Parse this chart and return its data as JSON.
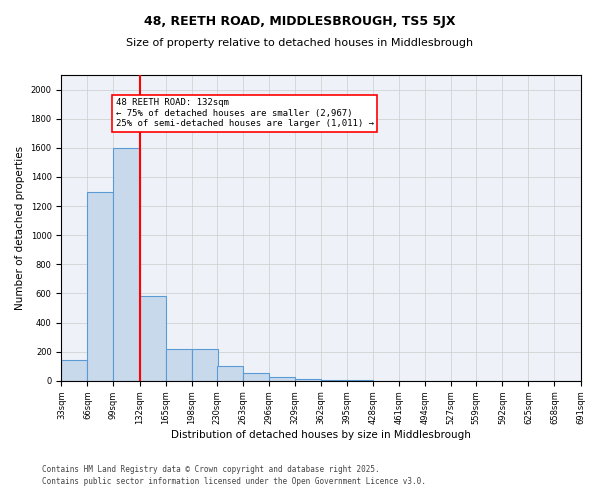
{
  "title": "48, REETH ROAD, MIDDLESBROUGH, TS5 5JX",
  "subtitle": "Size of property relative to detached houses in Middlesbrough",
  "xlabel": "Distribution of detached houses by size in Middlesbrough",
  "ylabel": "Number of detached properties",
  "bin_edges": [
    33,
    66,
    99,
    132,
    165,
    198,
    230,
    263,
    296,
    329,
    362,
    395,
    428,
    461,
    494,
    527,
    559,
    592,
    625,
    658,
    691
  ],
  "bar_heights": [
    140,
    1300,
    1600,
    580,
    220,
    220,
    100,
    55,
    25,
    10,
    5,
    3,
    2,
    1,
    1,
    0,
    0,
    0,
    0,
    0
  ],
  "bar_facecolor": "#c9d9ec",
  "bar_edgecolor": "#5b9bd5",
  "property_size": 132,
  "vline_color": "red",
  "annotation_text": "48 REETH ROAD: 132sqm\n← 75% of detached houses are smaller (2,967)\n25% of semi-detached houses are larger (1,011) →",
  "annotation_boxcolor": "white",
  "annotation_edgecolor": "red",
  "ylim": [
    0,
    2100
  ],
  "yticks": [
    0,
    200,
    400,
    600,
    800,
    1000,
    1200,
    1400,
    1600,
    1800,
    2000
  ],
  "grid_color": "#cccccc",
  "background_color": "#eef2f8",
  "footer_line1": "Contains HM Land Registry data © Crown copyright and database right 2025.",
  "footer_line2": "Contains public sector information licensed under the Open Government Licence v3.0.",
  "title_fontsize": 9,
  "subtitle_fontsize": 8,
  "tick_fontsize": 6,
  "ylabel_fontsize": 7.5,
  "xlabel_fontsize": 7.5,
  "annotation_fontsize": 6.5,
  "footer_fontsize": 5.5
}
